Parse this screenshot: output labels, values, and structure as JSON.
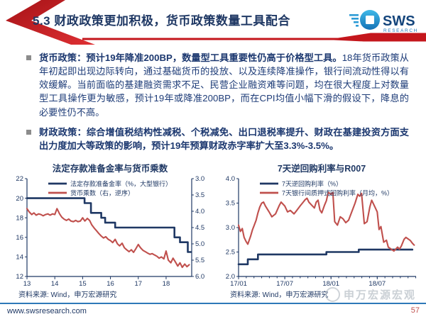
{
  "slide": {
    "title": "5.3 财政政策更加积极，货币政策数量工具配合",
    "footer_url": "www.swsresearch.com",
    "page_number": "57",
    "watermark": "申万宏源宏观",
    "logo": {
      "name": "SWS",
      "sub": "RESEARCH"
    }
  },
  "bullets": [
    {
      "bold": "货币政策：预计19年降准200BP，数量型工具重要性仍高于价格型工具。",
      "normal": "18年货币政策从年初起即出现边际转向，通过基础货币的投放、以及连续降准操作，银行间流动性得以有效缓解。当前面临的基建融资需求不足、民营企业融资难等问题，均在很大程度上对数量型工具操作更为敏感，预计19年或降准200BP，而在CPI均值小幅下滑的假设下，降息的必要性仍不高。"
    },
    {
      "bold": "财政政策：综合增值税结构性减税、个税减免、出口退税率提升、财政在基建投资方面支出力度加大等政策的影响，预计19年预算财政赤字率扩大至3.3%-3.5%。",
      "normal": ""
    }
  ],
  "colors": {
    "navy": "#1F3864",
    "red_series": "#C0504D",
    "accent_red": "#C4161C",
    "footer_line": "#2E79B8"
  },
  "chart_data": [
    {
      "type": "line",
      "title": "法定存款准备金率与货币乘数",
      "source": "资料来源: Wind，申万宏源研究",
      "x": {
        "min": 2013,
        "max": 2018.92,
        "minor_step": 0,
        "ticks": [
          {
            "v": 2013,
            "label": "13"
          },
          {
            "v": 2014,
            "label": "14"
          },
          {
            "v": 2015,
            "label": "15"
          },
          {
            "v": 2016,
            "label": "16"
          },
          {
            "v": 2017,
            "label": "17"
          },
          {
            "v": 2018,
            "label": "18"
          }
        ]
      },
      "left_axis": {
        "min": 12,
        "max": 22,
        "reversed": false,
        "ticks": [
          {
            "v": 22,
            "label": "22"
          },
          {
            "v": 20,
            "label": "20"
          },
          {
            "v": 18,
            "label": "18"
          },
          {
            "v": 16,
            "label": "16"
          },
          {
            "v": 14,
            "label": "14"
          },
          {
            "v": 12,
            "label": "12"
          }
        ]
      },
      "right_axis": {
        "min": 3,
        "max": 6,
        "reversed": true,
        "ticks": [
          {
            "v": 3.0,
            "label": "3.0"
          },
          {
            "v": 3.5,
            "label": "3.5"
          },
          {
            "v": 4.0,
            "label": "4.0"
          },
          {
            "v": 4.5,
            "label": "4.5"
          },
          {
            "v": 5.0,
            "label": "5.0"
          },
          {
            "v": 5.5,
            "label": "5.5"
          },
          {
            "v": 6.0,
            "label": "6.0"
          }
        ]
      },
      "series": [
        {
          "name": "法定存款准备金率（%，大型银行）",
          "axis": "left",
          "color": "#1F3864",
          "width": 2.6,
          "points": [
            [
              2013.0,
              20
            ],
            [
              2015.07,
              20
            ],
            [
              2015.07,
              19.5
            ],
            [
              2015.3,
              19.5
            ],
            [
              2015.3,
              18.5
            ],
            [
              2015.67,
              18.5
            ],
            [
              2015.67,
              18
            ],
            [
              2015.81,
              18
            ],
            [
              2015.81,
              17.5
            ],
            [
              2016.17,
              17.5
            ],
            [
              2016.17,
              17
            ],
            [
              2018.3,
              17
            ],
            [
              2018.3,
              16
            ],
            [
              2018.5,
              16
            ],
            [
              2018.5,
              15.5
            ],
            [
              2018.78,
              15.5
            ],
            [
              2018.78,
              14.5
            ],
            [
              2018.9,
              14.5
            ]
          ]
        },
        {
          "name": "货币乘数（右，逆序）",
          "axis": "right",
          "color": "#C0504D",
          "width": 2.1,
          "points": [
            [
              2013.0,
              3.92
            ],
            [
              2013.08,
              4.02
            ],
            [
              2013.17,
              4.1
            ],
            [
              2013.25,
              4.05
            ],
            [
              2013.33,
              4.12
            ],
            [
              2013.42,
              4.08
            ],
            [
              2013.5,
              4.1
            ],
            [
              2013.58,
              4.14
            ],
            [
              2013.67,
              4.1
            ],
            [
              2013.75,
              4.08
            ],
            [
              2013.83,
              4.12
            ],
            [
              2013.92,
              4.08
            ],
            [
              2014.0,
              4.1
            ],
            [
              2014.08,
              3.92
            ],
            [
              2014.17,
              4.08
            ],
            [
              2014.25,
              4.18
            ],
            [
              2014.33,
              4.24
            ],
            [
              2014.42,
              4.28
            ],
            [
              2014.5,
              4.24
            ],
            [
              2014.58,
              4.3
            ],
            [
              2014.67,
              4.32
            ],
            [
              2014.75,
              4.28
            ],
            [
              2014.83,
              4.32
            ],
            [
              2014.92,
              4.3
            ],
            [
              2015.0,
              4.2
            ],
            [
              2015.08,
              4.3
            ],
            [
              2015.17,
              4.22
            ],
            [
              2015.25,
              4.28
            ],
            [
              2015.33,
              4.42
            ],
            [
              2015.42,
              4.52
            ],
            [
              2015.5,
              4.6
            ],
            [
              2015.58,
              4.68
            ],
            [
              2015.67,
              4.76
            ],
            [
              2015.75,
              4.82
            ],
            [
              2015.83,
              4.78
            ],
            [
              2015.92,
              4.86
            ],
            [
              2016.0,
              4.9
            ],
            [
              2016.08,
              4.96
            ],
            [
              2016.17,
              4.86
            ],
            [
              2016.25,
              5.0
            ],
            [
              2016.33,
              5.06
            ],
            [
              2016.42,
              4.98
            ],
            [
              2016.5,
              5.12
            ],
            [
              2016.58,
              5.18
            ],
            [
              2016.67,
              5.24
            ],
            [
              2016.75,
              5.18
            ],
            [
              2016.83,
              5.26
            ],
            [
              2016.92,
              5.14
            ],
            [
              2017.0,
              5.02
            ],
            [
              2017.08,
              5.12
            ],
            [
              2017.17,
              5.2
            ],
            [
              2017.25,
              5.24
            ],
            [
              2017.33,
              5.28
            ],
            [
              2017.42,
              5.32
            ],
            [
              2017.5,
              5.3
            ],
            [
              2017.58,
              5.34
            ],
            [
              2017.67,
              5.38
            ],
            [
              2017.75,
              5.44
            ],
            [
              2017.83,
              5.4
            ],
            [
              2017.92,
              5.46
            ],
            [
              2018.0,
              5.22
            ],
            [
              2018.08,
              5.5
            ],
            [
              2018.17,
              5.58
            ],
            [
              2018.25,
              5.44
            ],
            [
              2018.33,
              5.55
            ],
            [
              2018.42,
              5.68
            ],
            [
              2018.5,
              5.58
            ],
            [
              2018.58,
              5.72
            ],
            [
              2018.67,
              5.62
            ],
            [
              2018.75,
              5.7
            ],
            [
              2018.83,
              5.64
            ]
          ]
        }
      ]
    },
    {
      "type": "line",
      "title": "7天逆回购利率与R007",
      "source": "资料来源: Wind，申万宏源研究",
      "x": {
        "min": 2017,
        "max": 2018.92,
        "minor_step": 0.08333,
        "ticks": [
          {
            "v": 2017.0,
            "label": "17/01"
          },
          {
            "v": 2017.5,
            "label": "17/07"
          },
          {
            "v": 2018.0,
            "label": "18/01"
          },
          {
            "v": 2018.5,
            "label": "18/07"
          }
        ]
      },
      "left_axis": {
        "min": 2.0,
        "max": 4.0,
        "reversed": false,
        "ticks": [
          {
            "v": 4.0,
            "label": "4.0"
          },
          {
            "v": 3.5,
            "label": "3.5"
          },
          {
            "v": 3.0,
            "label": "3.0"
          },
          {
            "v": 2.5,
            "label": "2.5"
          },
          {
            "v": 2.0,
            "label": "2.0"
          }
        ]
      },
      "right_axis": null,
      "series": [
        {
          "name": "7天逆回购利率（%）",
          "axis": "left",
          "color": "#1F3864",
          "width": 2.6,
          "points": [
            [
              2017.0,
              2.25
            ],
            [
              2017.1,
              2.25
            ],
            [
              2017.1,
              2.35
            ],
            [
              2017.21,
              2.35
            ],
            [
              2017.21,
              2.45
            ],
            [
              2017.95,
              2.45
            ],
            [
              2017.95,
              2.5
            ],
            [
              2018.3,
              2.5
            ],
            [
              2018.3,
              2.55
            ],
            [
              2018.88,
              2.55
            ]
          ]
        },
        {
          "name": "7天银行间质押式回购利率（月均，%）",
          "axis": "left",
          "color": "#C0504D",
          "width": 2.1,
          "points": [
            [
              2017.0,
              3.05
            ],
            [
              2017.02,
              2.92
            ],
            [
              2017.04,
              2.98
            ],
            [
              2017.06,
              2.8
            ],
            [
              2017.08,
              2.72
            ],
            [
              2017.1,
              2.66
            ],
            [
              2017.13,
              2.82
            ],
            [
              2017.15,
              2.95
            ],
            [
              2017.17,
              3.05
            ],
            [
              2017.19,
              3.15
            ],
            [
              2017.21,
              3.3
            ],
            [
              2017.23,
              3.42
            ],
            [
              2017.25,
              3.5
            ],
            [
              2017.27,
              3.52
            ],
            [
              2017.29,
              3.44
            ],
            [
              2017.33,
              3.32
            ],
            [
              2017.36,
              3.22
            ],
            [
              2017.4,
              3.28
            ],
            [
              2017.44,
              3.45
            ],
            [
              2017.46,
              3.52
            ],
            [
              2017.5,
              3.44
            ],
            [
              2017.53,
              3.32
            ],
            [
              2017.56,
              3.35
            ],
            [
              2017.6,
              3.28
            ],
            [
              2017.63,
              3.35
            ],
            [
              2017.67,
              3.45
            ],
            [
              2017.7,
              3.52
            ],
            [
              2017.72,
              3.57
            ],
            [
              2017.74,
              3.6
            ],
            [
              2017.76,
              3.52
            ],
            [
              2017.79,
              3.46
            ],
            [
              2017.82,
              3.4
            ],
            [
              2017.84,
              3.52
            ],
            [
              2017.86,
              3.56
            ],
            [
              2017.88,
              3.36
            ],
            [
              2017.9,
              3.3
            ],
            [
              2017.93,
              3.46
            ],
            [
              2017.95,
              3.55
            ],
            [
              2017.97,
              3.72
            ],
            [
              2018.0,
              3.68
            ],
            [
              2018.02,
              3.72
            ],
            [
              2018.04,
              3.12
            ],
            [
              2018.07,
              3.05
            ],
            [
              2018.1,
              3.22
            ],
            [
              2018.13,
              3.18
            ],
            [
              2018.16,
              3.1
            ],
            [
              2018.19,
              3.15
            ],
            [
              2018.22,
              3.3
            ],
            [
              2018.26,
              3.5
            ],
            [
              2018.29,
              3.68
            ],
            [
              2018.31,
              3.64
            ],
            [
              2018.33,
              3.7
            ],
            [
              2018.36,
              3.08
            ],
            [
              2018.39,
              3.12
            ],
            [
              2018.42,
              3.42
            ],
            [
              2018.44,
              3.56
            ],
            [
              2018.47,
              3.44
            ],
            [
              2018.5,
              3.32
            ],
            [
              2018.52,
              2.96
            ],
            [
              2018.54,
              3.02
            ],
            [
              2018.57,
              2.7
            ],
            [
              2018.6,
              2.74
            ],
            [
              2018.62,
              2.6
            ],
            [
              2018.65,
              2.56
            ],
            [
              2018.68,
              2.52
            ],
            [
              2018.7,
              2.56
            ],
            [
              2018.72,
              2.6
            ],
            [
              2018.74,
              2.56
            ],
            [
              2018.76,
              2.62
            ],
            [
              2018.79,
              2.76
            ],
            [
              2018.81,
              2.8
            ],
            [
              2018.84,
              2.76
            ],
            [
              2018.86,
              2.73
            ],
            [
              2018.88,
              2.68
            ],
            [
              2018.9,
              2.64
            ]
          ]
        }
      ]
    }
  ]
}
